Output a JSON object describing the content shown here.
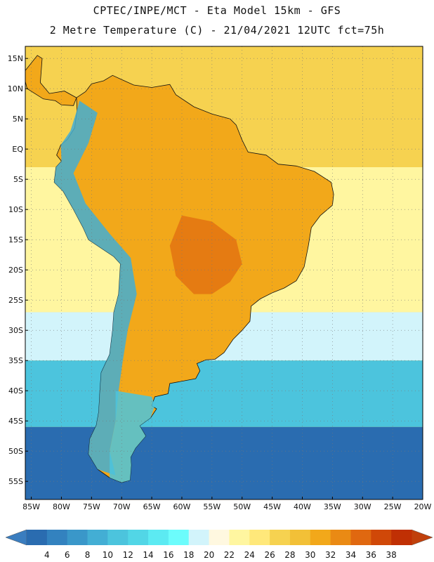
{
  "title": {
    "line1": "CPTEC/INPE/MCT -  Eta Model 15km - GFS",
    "line2": "2 Metre Temperature (C) - 21/04/2021 12UTC fct=75h"
  },
  "map": {
    "region": "South America",
    "lon_range": [
      -86,
      -20
    ],
    "lat_range": [
      -58,
      17
    ],
    "lat_labels": [
      {
        "value": 15,
        "text": "15N"
      },
      {
        "value": 10,
        "text": "10N"
      },
      {
        "value": 5,
        "text": "5N"
      },
      {
        "value": 0,
        "text": "EQ"
      },
      {
        "value": -5,
        "text": "5S"
      },
      {
        "value": -10,
        "text": "10S"
      },
      {
        "value": -15,
        "text": "15S"
      },
      {
        "value": -20,
        "text": "20S"
      },
      {
        "value": -25,
        "text": "25S"
      },
      {
        "value": -30,
        "text": "30S"
      },
      {
        "value": -35,
        "text": "35S"
      },
      {
        "value": -40,
        "text": "40S"
      },
      {
        "value": -45,
        "text": "45S"
      },
      {
        "value": -50,
        "text": "50S"
      },
      {
        "value": -55,
        "text": "55S"
      }
    ],
    "lon_labels": [
      {
        "value": -85,
        "text": "85W"
      },
      {
        "value": -80,
        "text": "80W"
      },
      {
        "value": -75,
        "text": "75W"
      },
      {
        "value": -70,
        "text": "70W"
      },
      {
        "value": -65,
        "text": "65W"
      },
      {
        "value": -60,
        "text": "60W"
      },
      {
        "value": -55,
        "text": "55W"
      },
      {
        "value": -50,
        "text": "50W"
      },
      {
        "value": -45,
        "text": "45W"
      },
      {
        "value": -40,
        "text": "40W"
      },
      {
        "value": -35,
        "text": "35W"
      },
      {
        "value": -30,
        "text": "30W"
      },
      {
        "value": -25,
        "text": "25W"
      },
      {
        "value": -20,
        "text": "20W"
      }
    ]
  },
  "colorbar": {
    "values": [
      "4",
      "6",
      "8",
      "10",
      "12",
      "14",
      "16",
      "18",
      "20",
      "22",
      "24",
      "26",
      "28",
      "30",
      "32",
      "34",
      "36",
      "38"
    ],
    "colors": [
      "#2a6cb0",
      "#3382bf",
      "#3a97c9",
      "#43aed4",
      "#4cc4dd",
      "#52d6e6",
      "#5ceaf2",
      "#6cfcfc",
      "#d2f4fb",
      "#fff8e0",
      "#fff6a0",
      "#ffe87a",
      "#f6d250",
      "#f2c037",
      "#f2a81a",
      "#ea8a14",
      "#e06810",
      "#d04808",
      "#c03004"
    ],
    "low_color": "#3a7dbf",
    "high_color": "#c0400c"
  },
  "colors": {
    "ocean_cold": "#2a6cb0",
    "ocean_cool": "#4cc4dd",
    "ocean_mild": "#d2f4fb",
    "ocean_warm": "#fff6a0",
    "ocean_hot": "#f6d250",
    "land_hot": "#f2a81a",
    "land_very_hot": "#e06810",
    "andes": "#43aed4"
  }
}
